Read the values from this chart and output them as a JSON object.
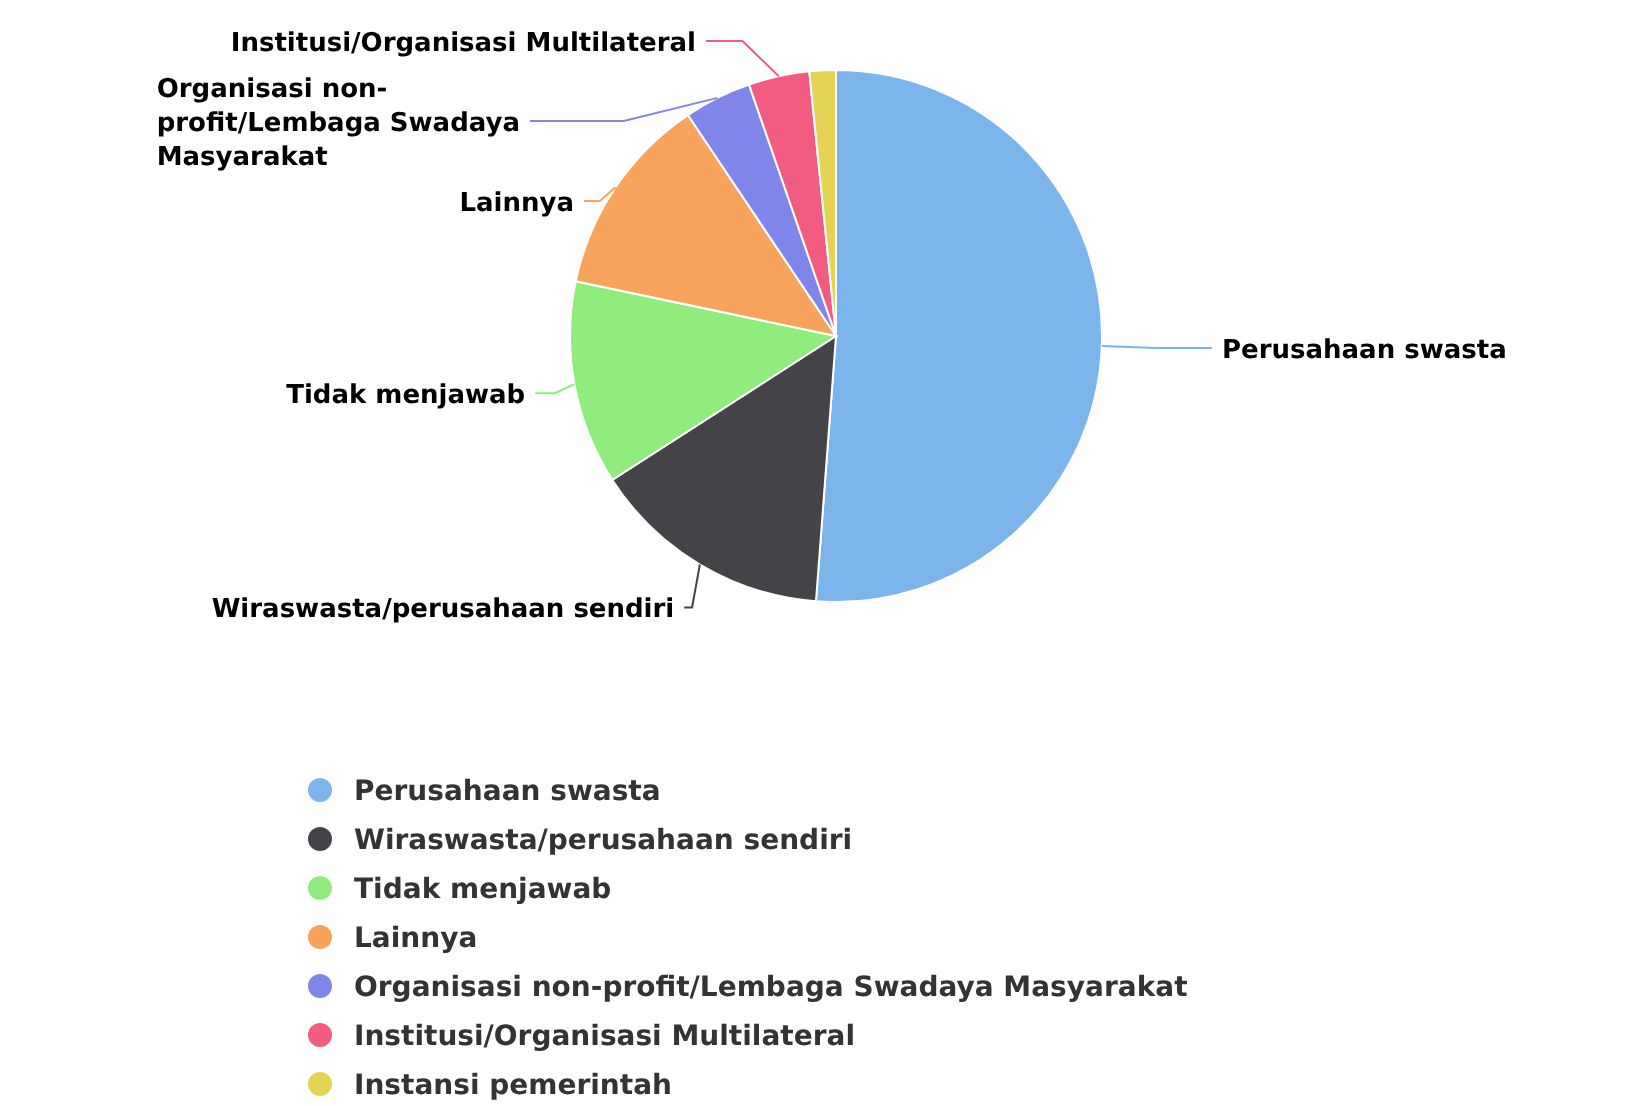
{
  "chart_data": {
    "type": "pie",
    "categories": [
      "Perusahaan swasta",
      "Wiraswasta/perusahaan sendiri",
      "Tidak menjawab",
      "Lainnya",
      "Organisasi non-profit/Lembaga Swadaya Masyarakat",
      "Institusi/Organisasi Multilateral",
      "Instansi pemerintah"
    ],
    "values": [
      51.2,
      14.7,
      12.4,
      12.3,
      4.1,
      3.7,
      1.6
    ],
    "colors": [
      "#7cb5ec",
      "#434348",
      "#90ed7d",
      "#f7a35c",
      "#8085e9",
      "#f15c80",
      "#e4d354"
    ],
    "legend": "bottom"
  }
}
